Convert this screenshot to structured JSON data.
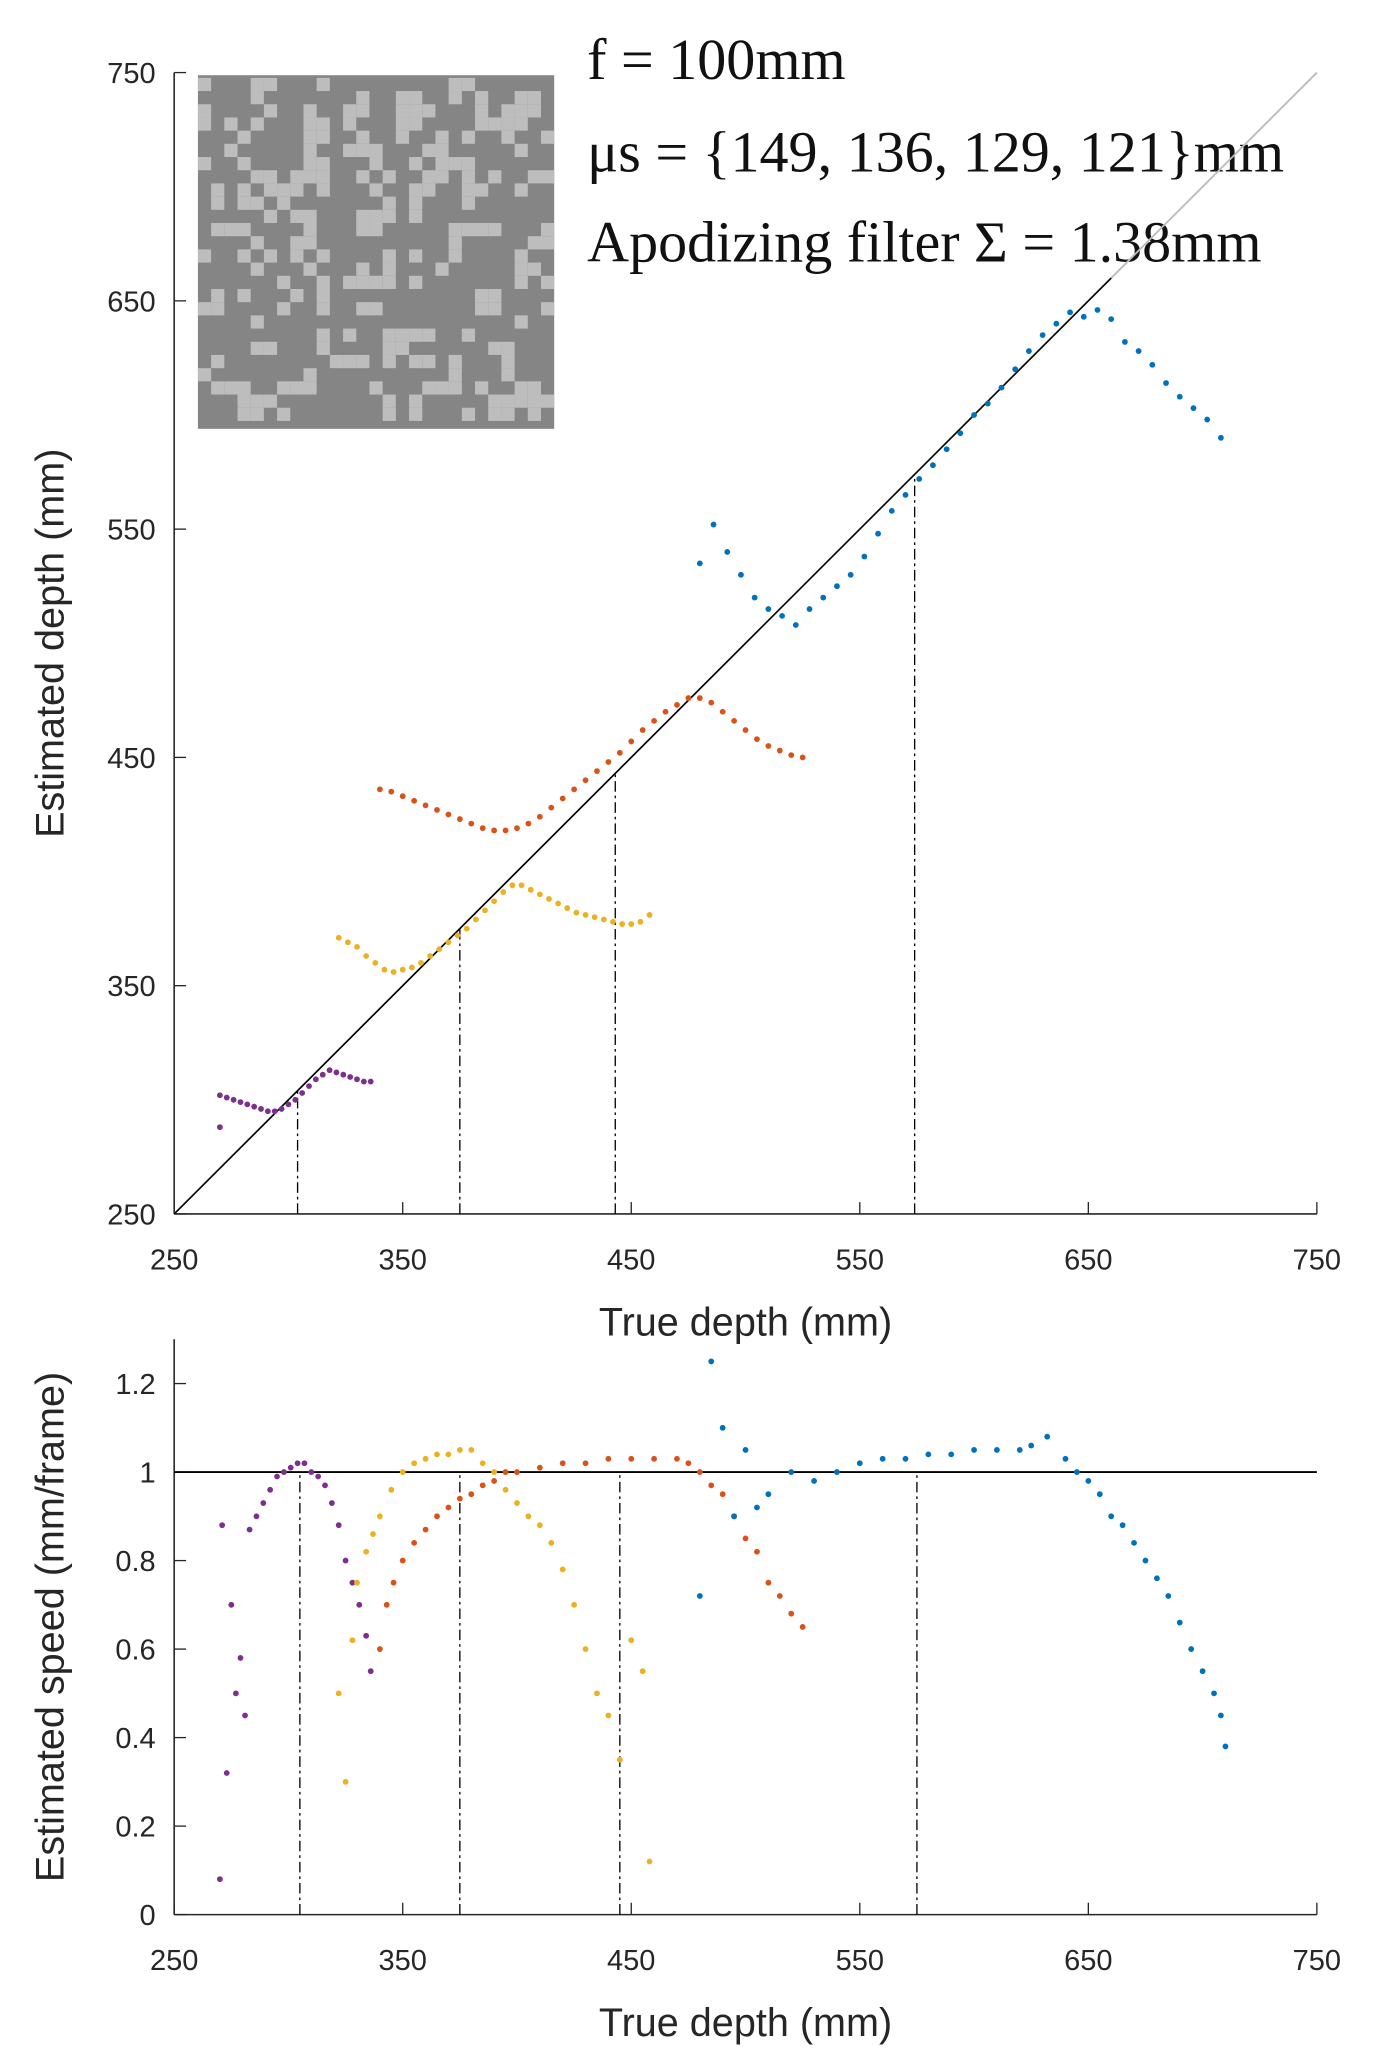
{
  "chart_data": [
    {
      "type": "scatter",
      "annotations": [
        "f = 100mm",
        "μs = {149, 136, 129, 121}mm",
        "Apodizing filter  Σ = 1.38mm"
      ],
      "xlabel": "True depth (mm)",
      "ylabel": "Estimated depth (mm)",
      "xlim": [
        250,
        750
      ],
      "ylim": [
        250,
        750
      ],
      "xticks": [
        250,
        350,
        450,
        550,
        650,
        750
      ],
      "yticks": [
        250,
        350,
        450,
        550,
        650,
        750
      ],
      "identity_line": true,
      "markers": [
        304,
        375,
        443,
        574
      ],
      "series": [
        {
          "color": "#7e2f8e",
          "x": [
            270,
            270,
            273,
            276,
            279,
            282,
            285,
            288,
            291,
            294,
            297,
            300,
            303,
            306,
            309,
            312,
            315,
            318,
            321,
            324,
            327,
            330,
            333,
            336
          ],
          "values": [
            288,
            302,
            301,
            300,
            299,
            298,
            297,
            296,
            295,
            295,
            296,
            298,
            300,
            303,
            306,
            309,
            311,
            313,
            312,
            311,
            310,
            309,
            308,
            308
          ]
        },
        {
          "color": "#edb120",
          "x": [
            322,
            326,
            330,
            334,
            338,
            342,
            346,
            350,
            354,
            358,
            362,
            366,
            370,
            374,
            378,
            382,
            386,
            390,
            394,
            398,
            402,
            406,
            410,
            414,
            418,
            422,
            426,
            430,
            434,
            438,
            442,
            446,
            450,
            454,
            458
          ],
          "values": [
            371,
            369,
            367,
            363,
            360,
            357,
            356,
            357,
            358,
            360,
            363,
            366,
            369,
            372,
            375,
            379,
            383,
            387,
            391,
            394,
            394,
            392,
            390,
            388,
            386,
            384,
            382,
            381,
            380,
            379,
            378,
            377,
            377,
            378,
            381
          ]
        },
        {
          "color": "#d95319",
          "x": [
            340,
            345,
            350,
            355,
            360,
            365,
            370,
            375,
            380,
            385,
            390,
            395,
            400,
            405,
            410,
            415,
            420,
            425,
            430,
            435,
            440,
            445,
            450,
            455,
            460,
            465,
            470,
            475,
            480,
            485,
            490,
            495,
            500,
            505,
            510,
            515,
            520,
            525
          ],
          "values": [
            436,
            435,
            433,
            431,
            429,
            427,
            425,
            423,
            421,
            419,
            418,
            418,
            419,
            421,
            424,
            428,
            432,
            436,
            440,
            444,
            448,
            452,
            457,
            462,
            466,
            470,
            473,
            476,
            476,
            474,
            470,
            466,
            462,
            458,
            455,
            453,
            451,
            450
          ]
        },
        {
          "color": "#0072bd",
          "x": [
            480,
            486,
            492,
            498,
            504,
            510,
            516,
            522,
            528,
            534,
            540,
            546,
            552,
            558,
            564,
            570,
            576,
            582,
            588,
            594,
            600,
            606,
            612,
            618,
            624,
            630,
            636,
            642,
            648,
            654,
            660,
            666,
            672,
            678,
            684,
            690,
            696,
            702,
            708
          ],
          "values": [
            535,
            552,
            540,
            530,
            520,
            515,
            512,
            508,
            515,
            520,
            525,
            530,
            538,
            548,
            558,
            565,
            572,
            578,
            585,
            592,
            600,
            605,
            612,
            620,
            628,
            635,
            640,
            645,
            643,
            646,
            642,
            632,
            628,
            622,
            614,
            608,
            603,
            598,
            590
          ]
        }
      ]
    },
    {
      "type": "scatter",
      "xlabel": "True depth (mm)",
      "ylabel": "Estimated speed (mm/frame)",
      "xlim": [
        250,
        750
      ],
      "ylim": [
        0,
        1.3
      ],
      "xticks": [
        250,
        350,
        450,
        550,
        650,
        750
      ],
      "yticks": [
        0,
        0.2,
        0.4,
        0.6,
        0.8,
        1,
        1.2
      ],
      "reference": 1,
      "markers": [
        305,
        375,
        445,
        575
      ],
      "series": [
        {
          "color": "#7e2f8e",
          "x": [
            270,
            271,
            273,
            275,
            277,
            279,
            281,
            283,
            286,
            289,
            292,
            295,
            298,
            301,
            304,
            307,
            310,
            313,
            316,
            319,
            322,
            325,
            328,
            331,
            334,
            336
          ],
          "values": [
            0.08,
            0.88,
            0.32,
            0.7,
            0.5,
            0.58,
            0.45,
            0.87,
            0.9,
            0.93,
            0.96,
            0.99,
            1.0,
            1.01,
            1.02,
            1.02,
            1.0,
            0.99,
            0.97,
            0.93,
            0.88,
            0.8,
            0.75,
            0.7,
            0.63,
            0.55
          ]
        },
        {
          "color": "#edb120",
          "x": [
            322,
            325,
            328,
            330,
            334,
            337,
            340,
            345,
            350,
            355,
            360,
            365,
            370,
            375,
            380,
            385,
            390,
            395,
            400,
            405,
            410,
            415,
            420,
            425,
            430,
            435,
            440,
            445,
            450,
            455,
            458
          ],
          "values": [
            0.5,
            0.3,
            0.62,
            0.75,
            0.82,
            0.86,
            0.9,
            0.96,
            1.0,
            1.02,
            1.03,
            1.04,
            1.04,
            1.05,
            1.05,
            1.02,
            1.0,
            0.96,
            0.93,
            0.9,
            0.88,
            0.84,
            0.78,
            0.7,
            0.6,
            0.5,
            0.45,
            0.35,
            0.62,
            0.55,
            0.12
          ]
        },
        {
          "color": "#d95319",
          "x": [
            340,
            343,
            346,
            350,
            355,
            360,
            365,
            370,
            375,
            380,
            385,
            390,
            395,
            400,
            410,
            420,
            430,
            440,
            450,
            460,
            470,
            475,
            480,
            485,
            490,
            495,
            500,
            505,
            510,
            515,
            520,
            525
          ],
          "values": [
            0.6,
            0.7,
            0.75,
            0.8,
            0.84,
            0.87,
            0.9,
            0.92,
            0.94,
            0.95,
            0.97,
            0.98,
            1.0,
            1.0,
            1.01,
            1.02,
            1.02,
            1.03,
            1.03,
            1.03,
            1.03,
            1.02,
            1.0,
            0.97,
            0.95,
            0.9,
            0.85,
            0.82,
            0.75,
            0.72,
            0.68,
            0.65
          ]
        },
        {
          "color": "#0072bd",
          "x": [
            480,
            485,
            490,
            495,
            500,
            505,
            510,
            520,
            530,
            540,
            550,
            560,
            570,
            580,
            590,
            600,
            610,
            620,
            625,
            632,
            640,
            645,
            650,
            655,
            660,
            665,
            670,
            675,
            680,
            685,
            690,
            695,
            700,
            705,
            708,
            710
          ],
          "values": [
            0.72,
            1.25,
            1.1,
            0.9,
            1.05,
            0.92,
            0.95,
            1.0,
            0.98,
            1.0,
            1.02,
            1.03,
            1.03,
            1.04,
            1.04,
            1.05,
            1.05,
            1.05,
            1.06,
            1.08,
            1.03,
            1.0,
            0.98,
            0.95,
            0.9,
            0.88,
            0.84,
            0.8,
            0.76,
            0.72,
            0.66,
            0.6,
            0.55,
            0.5,
            0.45,
            0.38
          ]
        }
      ]
    }
  ]
}
